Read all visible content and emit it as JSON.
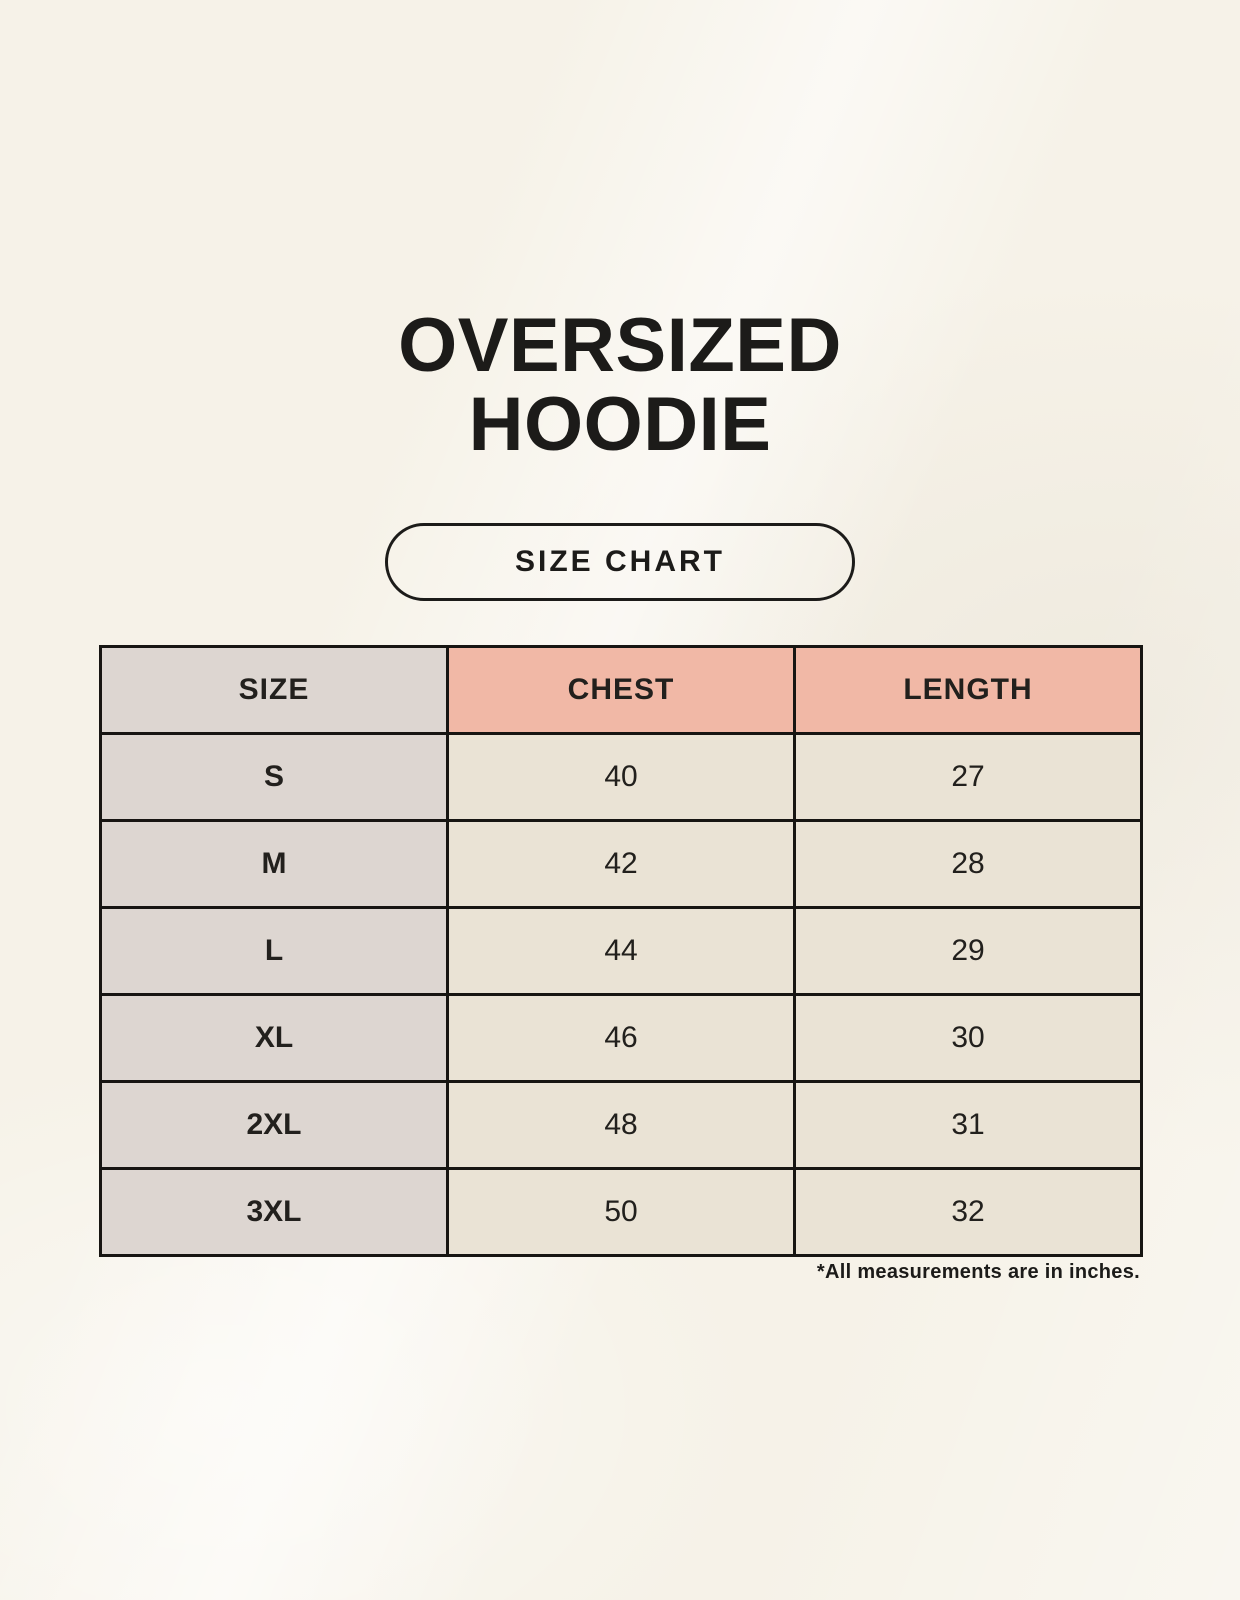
{
  "title": {
    "line1": "OVERSIZED",
    "line2": "HOODIE"
  },
  "size_chart_button": {
    "label": "SIZE CHART"
  },
  "table": {
    "columns": [
      "SIZE",
      "CHEST",
      "LENGTH"
    ],
    "rows": [
      {
        "size": "S",
        "chest": "40",
        "length": "27"
      },
      {
        "size": "M",
        "chest": "42",
        "length": "28"
      },
      {
        "size": "L",
        "chest": "44",
        "length": "29"
      },
      {
        "size": "XL",
        "chest": "46",
        "length": "30"
      },
      {
        "size": "2XL",
        "chest": "48",
        "length": "31"
      },
      {
        "size": "3XL",
        "chest": "50",
        "length": "32"
      }
    ]
  },
  "footnote": "*All measurements are in inches.",
  "colors": {
    "background_cream": "#f6f2e8",
    "header_accent_pink": "#f1b8a6",
    "size_column_gray": "#ddd6d1",
    "data_cell_beige": "#eae3d5",
    "table_border": "#171512",
    "text": "#1c1b19"
  }
}
